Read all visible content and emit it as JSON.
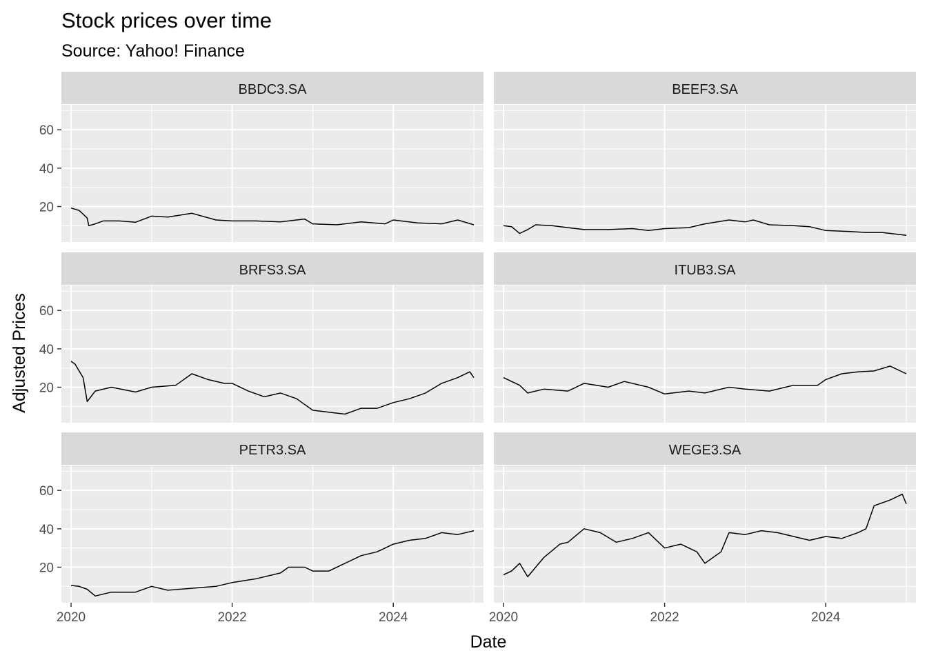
{
  "chart_data": {
    "type": "line",
    "title": "Stock prices over time",
    "subtitle": "Source: Yahoo! Finance",
    "xlabel": "Date",
    "ylabel": "Adjusted Prices",
    "xlim": [
      2019.88,
      2025.12
    ],
    "ylim": [
      1.5,
      73
    ],
    "x_ticks": [
      2020,
      2022,
      2024
    ],
    "x_tick_labels": [
      "2020",
      "2022",
      "2024"
    ],
    "y_ticks": [
      20,
      40,
      60
    ],
    "y_tick_labels": [
      "20",
      "40",
      "60"
    ],
    "grid": true,
    "layout": "facet-grid 3x2",
    "panels": [
      {
        "name": "BBDC3.SA",
        "x": [
          2020.0,
          2020.1,
          2020.2,
          2020.22,
          2020.3,
          2020.4,
          2020.6,
          2020.8,
          2021.0,
          2021.2,
          2021.5,
          2021.8,
          2022.0,
          2022.3,
          2022.6,
          2022.9,
          2023.0,
          2023.3,
          2023.6,
          2023.9,
          2024.0,
          2024.3,
          2024.6,
          2024.8,
          2025.0
        ],
        "y": [
          19.2,
          18,
          14,
          10,
          11,
          12.5,
          12.5,
          11.8,
          15,
          14.5,
          16.5,
          13,
          12.5,
          12.5,
          12,
          13.5,
          11,
          10.5,
          12,
          11,
          13,
          11.5,
          11,
          13,
          10.5
        ]
      },
      {
        "name": "BEEF3.SA",
        "x": [
          2020.0,
          2020.1,
          2020.2,
          2020.3,
          2020.4,
          2020.6,
          2020.8,
          2021.0,
          2021.3,
          2021.6,
          2021.8,
          2022.0,
          2022.3,
          2022.5,
          2022.8,
          2023.0,
          2023.1,
          2023.3,
          2023.6,
          2023.8,
          2024.0,
          2024.3,
          2024.5,
          2024.7,
          2024.9,
          2025.0
        ],
        "y": [
          10,
          9.5,
          6,
          8,
          10.5,
          10,
          9,
          8,
          8,
          8.5,
          7.5,
          8.5,
          9,
          11,
          13,
          12,
          13,
          10.5,
          10,
          9.5,
          7.5,
          7,
          6.5,
          6.5,
          5.5,
          5
        ]
      },
      {
        "name": "BRFS3.SA",
        "x": [
          2020.0,
          2020.05,
          2020.15,
          2020.2,
          2020.3,
          2020.5,
          2020.8,
          2021.0,
          2021.3,
          2021.5,
          2021.7,
          2021.9,
          2022.0,
          2022.2,
          2022.4,
          2022.6,
          2022.8,
          2023.0,
          2023.2,
          2023.4,
          2023.6,
          2023.8,
          2024.0,
          2024.2,
          2024.4,
          2024.6,
          2024.8,
          2024.95,
          2025.0
        ],
        "y": [
          33.5,
          32,
          25,
          12.5,
          18,
          20,
          17.5,
          20,
          21,
          27,
          24,
          22,
          22,
          18,
          15,
          17,
          14,
          8,
          7,
          6,
          9,
          9,
          12,
          14,
          17,
          22,
          25,
          28,
          25
        ]
      },
      {
        "name": "ITUB3.SA",
        "x": [
          2020.0,
          2020.1,
          2020.2,
          2020.3,
          2020.5,
          2020.8,
          2021.0,
          2021.3,
          2021.5,
          2021.8,
          2022.0,
          2022.3,
          2022.5,
          2022.8,
          2023.0,
          2023.3,
          2023.6,
          2023.9,
          2024.0,
          2024.2,
          2024.4,
          2024.6,
          2024.8,
          2025.0
        ],
        "y": [
          25,
          23,
          21,
          17,
          19,
          18,
          22,
          20,
          23,
          20,
          16.5,
          18,
          17,
          20,
          19,
          18,
          21,
          21,
          24,
          27,
          28,
          28.5,
          31,
          27
        ]
      },
      {
        "name": "PETR3.SA",
        "x": [
          2020.0,
          2020.1,
          2020.2,
          2020.3,
          2020.5,
          2020.8,
          2021.0,
          2021.2,
          2021.5,
          2021.8,
          2022.0,
          2022.3,
          2022.6,
          2022.7,
          2022.9,
          2023.0,
          2023.2,
          2023.4,
          2023.6,
          2023.8,
          2024.0,
          2024.2,
          2024.4,
          2024.6,
          2024.8,
          2025.0
        ],
        "y": [
          10.5,
          10,
          8.5,
          5,
          7,
          7,
          10,
          8,
          9,
          10,
          12,
          14,
          17,
          20,
          20,
          18,
          18,
          22,
          26,
          28,
          32,
          34,
          35,
          38,
          37,
          39
        ]
      },
      {
        "name": "WEGE3.SA",
        "x": [
          2020.0,
          2020.1,
          2020.2,
          2020.3,
          2020.4,
          2020.5,
          2020.7,
          2020.8,
          2021.0,
          2021.2,
          2021.4,
          2021.6,
          2021.8,
          2022.0,
          2022.2,
          2022.4,
          2022.5,
          2022.7,
          2022.8,
          2023.0,
          2023.2,
          2023.4,
          2023.6,
          2023.8,
          2024.0,
          2024.2,
          2024.4,
          2024.5,
          2024.6,
          2024.8,
          2024.95,
          2025.0
        ],
        "y": [
          16,
          18,
          22,
          15,
          20,
          25,
          32,
          33,
          40,
          38,
          33,
          35,
          38,
          30,
          32,
          28,
          22,
          28,
          38,
          37,
          39,
          38,
          36,
          34,
          36,
          35,
          38,
          40,
          52,
          55,
          58,
          53
        ]
      }
    ]
  }
}
